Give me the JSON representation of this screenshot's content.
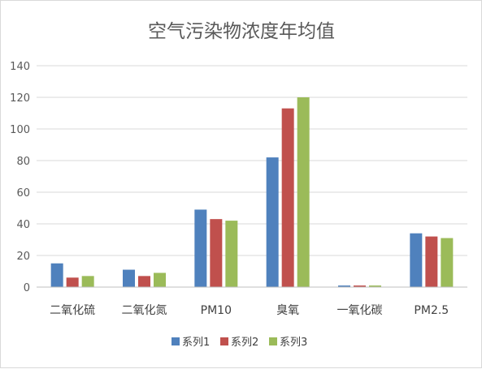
{
  "chart_data": {
    "type": "bar",
    "title": "空气污染物浓度年均值",
    "xlabel": "",
    "ylabel": "",
    "categories": [
      "二氧化硫",
      "二氧化氮",
      "PM10",
      "臭氧",
      "一氧化碳",
      "PM2.5"
    ],
    "series": [
      {
        "name": "系列1",
        "color": "#4f81bd",
        "values": [
          15,
          11,
          49,
          82,
          1,
          34
        ]
      },
      {
        "name": "系列2",
        "color": "#c0504d",
        "values": [
          6,
          7,
          43,
          113,
          1,
          32
        ]
      },
      {
        "name": "系列3",
        "color": "#9bbb59",
        "values": [
          7,
          9,
          42,
          120,
          1,
          31
        ]
      }
    ],
    "ylim": [
      0,
      140
    ],
    "yticks": [
      "0",
      "20",
      "40",
      "60",
      "80",
      "100",
      "120",
      "140"
    ],
    "grid": true,
    "legend_position": "bottom"
  }
}
